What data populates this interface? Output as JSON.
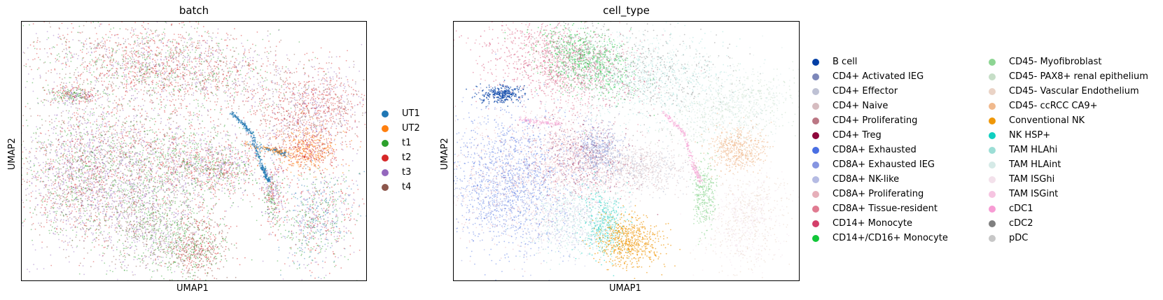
{
  "chart_data": [
    {
      "type": "scatter",
      "title": "batch",
      "xlabel": "UMAP1",
      "ylabel": "UMAP2",
      "grid": false,
      "legend_placement": "right",
      "legend_entries": [
        {
          "name": "UT1",
          "color": "#1f77b4"
        },
        {
          "name": "UT2",
          "color": "#ff7f0e"
        },
        {
          "name": "t1",
          "color": "#2ca02c"
        },
        {
          "name": "t2",
          "color": "#d62728"
        },
        {
          "name": "t3",
          "color": "#9467bd"
        },
        {
          "name": "t4",
          "color": "#8c564b"
        }
      ],
      "ticks_shown": false
    },
    {
      "type": "scatter",
      "title": "cell_type",
      "xlabel": "UMAP1",
      "ylabel": "UMAP2",
      "grid": false,
      "legend_placement": "right",
      "legend_entries": [
        {
          "name": "B cell",
          "color": "#023fa5"
        },
        {
          "name": "CD4+ Activated IEG",
          "color": "#7d87b9"
        },
        {
          "name": "CD4+ Effector",
          "color": "#bec1d4"
        },
        {
          "name": "CD4+ Naive",
          "color": "#d6bcc0"
        },
        {
          "name": "CD4+ Proliferating",
          "color": "#bb7784"
        },
        {
          "name": "CD4+ Treg",
          "color": "#8e063b"
        },
        {
          "name": "CD8A+ Exhausted",
          "color": "#4a6fe3"
        },
        {
          "name": "CD8A+ Exhausted IEG",
          "color": "#8595e1"
        },
        {
          "name": "CD8A+ NK-like",
          "color": "#b5bbe3"
        },
        {
          "name": "CD8A+ Proliferating",
          "color": "#e6afb9"
        },
        {
          "name": "CD8A+ Tissue-resident",
          "color": "#e07b91"
        },
        {
          "name": "CD14+ Monocyte",
          "color": "#d33f6a"
        },
        {
          "name": "CD14+/CD16+ Monocyte",
          "color": "#11c638"
        },
        {
          "name": "CD45- Myofibroblast",
          "color": "#8dd593"
        },
        {
          "name": "CD45- PAX8+ renal epithelium",
          "color": "#c6dec7"
        },
        {
          "name": "CD45- Vascular Endothelium",
          "color": "#ead3c6"
        },
        {
          "name": "CD45- ccRCC CA9+",
          "color": "#f0b98d"
        },
        {
          "name": "Conventional NK",
          "color": "#ef9708"
        },
        {
          "name": "NK HSP+",
          "color": "#0fcfc0"
        },
        {
          "name": "TAM HLAhi",
          "color": "#9cded6"
        },
        {
          "name": "TAM HLAint",
          "color": "#d5eae7"
        },
        {
          "name": "TAM ISGhi",
          "color": "#f3e1eb"
        },
        {
          "name": "TAM ISGint",
          "color": "#f6c4e1"
        },
        {
          "name": "cDC1",
          "color": "#f79cd4"
        },
        {
          "name": "cDC2",
          "color": "#7f7f7f"
        },
        {
          "name": "pDC",
          "color": "#c7c7c7"
        }
      ],
      "ticks_shown": false
    }
  ]
}
